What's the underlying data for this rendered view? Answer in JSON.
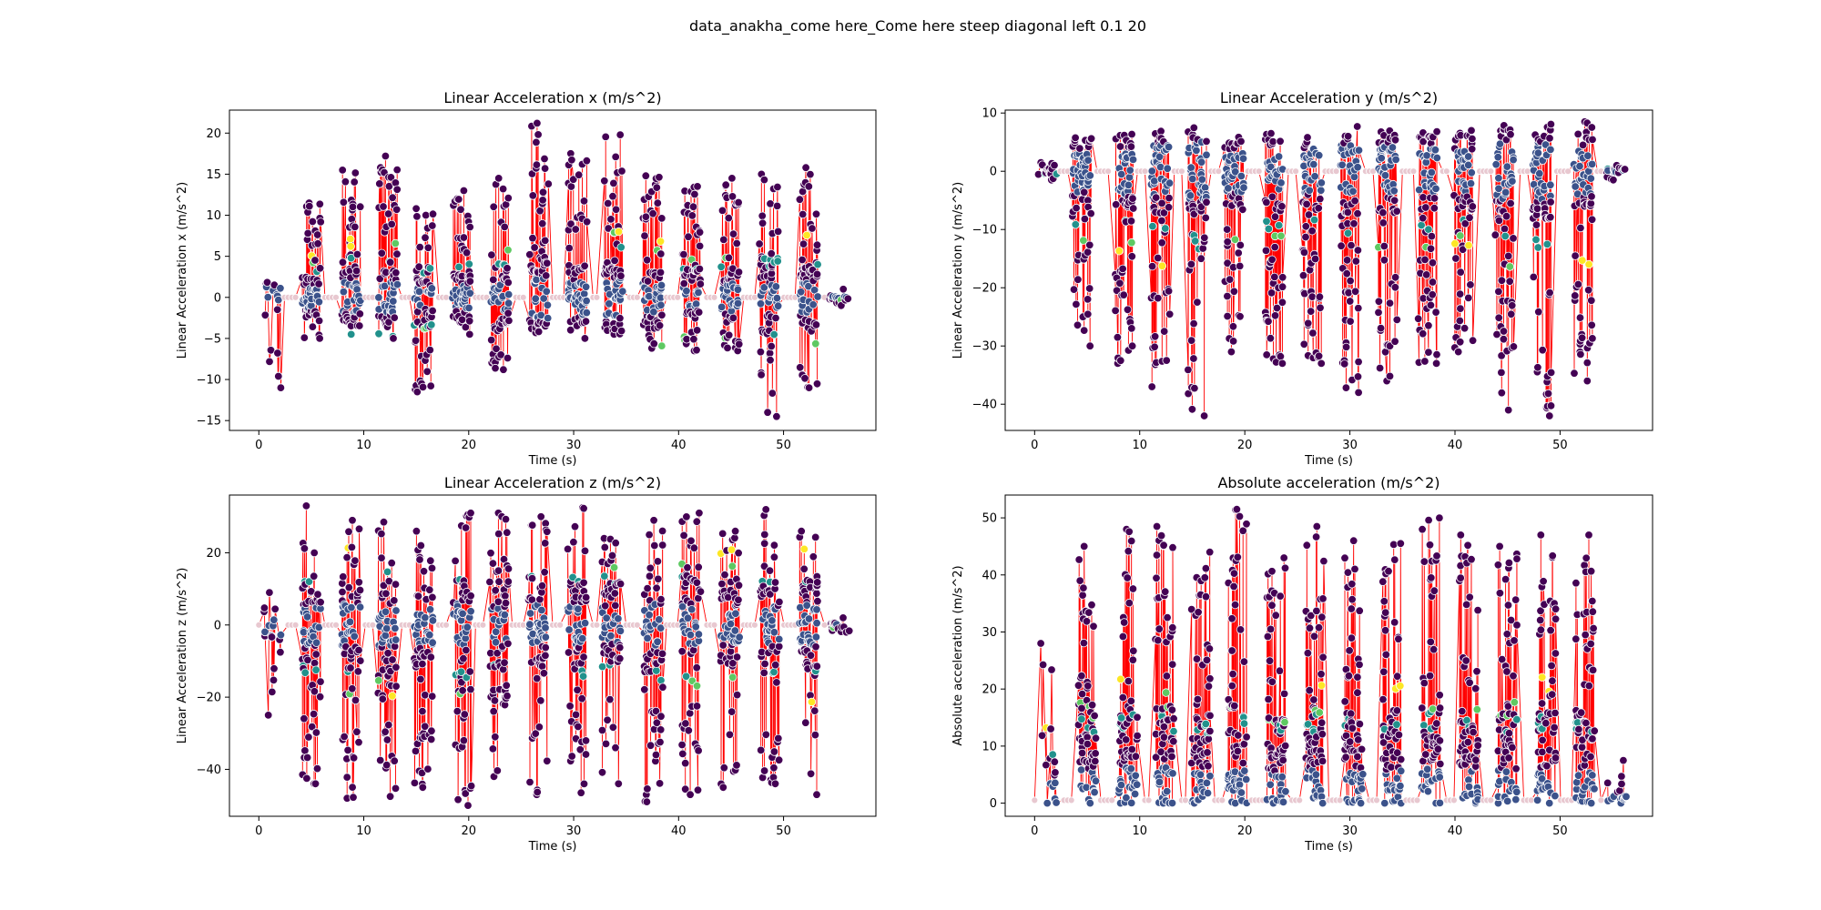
{
  "figure": {
    "suptitle": "data_anakha_come here_Come here steep diagonal left 0.1 20"
  },
  "colors": {
    "line": "#ff0000",
    "marker_edge": "#ffffff",
    "low": "#440154",
    "mid_low": "#3b528b",
    "mid": "#21918c",
    "mid_high": "#5ec962",
    "high": "#fde725",
    "faint": "#e8c8d0"
  },
  "chart_data": [
    {
      "type": "scatter",
      "title": "Linear Acceleration x (m/s^2)",
      "xlabel": "Time (s)",
      "ylabel": "Linear Acceleration x (m/s^2)",
      "xlim": [
        -2.8,
        58.8
      ],
      "ylim": [
        -16.2,
        22.8
      ],
      "xticks": [
        0,
        10,
        20,
        30,
        40,
        50
      ],
      "yticks": [
        -15,
        -10,
        -5,
        0,
        5,
        10,
        15,
        20
      ],
      "grid": false,
      "legend": "none",
      "time_range": [
        0,
        56
      ],
      "idle_value": 0,
      "gesture_centers": [
        1.2,
        5.0,
        8.8,
        12.3,
        15.7,
        19.3,
        23.0,
        26.7,
        30.4,
        33.8,
        37.5,
        41.2,
        44.9,
        48.6,
        52.4,
        55.3
      ],
      "gesture_extents": [
        [
          -11.0,
          1.5
        ],
        [
          -5.0,
          11.5
        ],
        [
          -4.5,
          15.5
        ],
        [
          -5.0,
          17.2
        ],
        [
          -11.5,
          10.8
        ],
        [
          -4.5,
          13.0
        ],
        [
          -8.8,
          14.5
        ],
        [
          -3.5,
          21.2
        ],
        [
          -5.0,
          17.5
        ],
        [
          -4.5,
          19.8
        ],
        [
          -6.2,
          14.8
        ],
        [
          -6.5,
          13.5
        ],
        [
          -6.5,
          14.5
        ],
        [
          -14.5,
          15.0
        ],
        [
          -11.0,
          15.8
        ],
        [
          -1.0,
          1.0
        ]
      ]
    },
    {
      "type": "scatter",
      "title": "Linear Acceleration y (m/s^2)",
      "xlabel": "Time (s)",
      "ylabel": "Linear Acceleration y (m/s^2)",
      "xlim": [
        -2.8,
        58.8
      ],
      "ylim": [
        -44.5,
        10.5
      ],
      "xticks": [
        0,
        10,
        20,
        30,
        40,
        50
      ],
      "yticks": [
        -40,
        -30,
        -20,
        -10,
        0,
        10
      ],
      "grid": false,
      "legend": "none",
      "time_range": [
        0,
        56
      ],
      "idle_value": 0,
      "gesture_centers": [
        1.2,
        4.5,
        8.5,
        12.0,
        15.5,
        19.0,
        22.8,
        26.4,
        30.0,
        33.6,
        37.4,
        40.8,
        44.7,
        48.3,
        52.2,
        55.3
      ],
      "gesture_extents": [
        [
          -1.5,
          1.5
        ],
        [
          -30.0,
          3.0
        ],
        [
          -33.0,
          4.0
        ],
        [
          -37.0,
          4.5
        ],
        [
          -42.0,
          4.0
        ],
        [
          -31.0,
          4.0
        ],
        [
          -33.0,
          6.5
        ],
        [
          -33.0,
          5.0
        ],
        [
          -38.0,
          6.0
        ],
        [
          -36.0,
          5.0
        ],
        [
          -33.0,
          6.0
        ],
        [
          -31.0,
          7.0
        ],
        [
          -41.0,
          6.0
        ],
        [
          -42.0,
          5.0
        ],
        [
          -36.0,
          8.5
        ],
        [
          -1.5,
          1.0
        ]
      ]
    },
    {
      "type": "scatter",
      "title": "Linear Acceleration z (m/s^2)",
      "xlabel": "Time (s)",
      "ylabel": "Linear Acceleration z (m/s^2)",
      "xlim": [
        -2.8,
        58.8
      ],
      "ylim": [
        -53.0,
        36.0
      ],
      "xticks": [
        0,
        10,
        20,
        30,
        40,
        50
      ],
      "yticks": [
        -40,
        -20,
        0,
        20
      ],
      "grid": false,
      "legend": "none",
      "time_range": [
        0,
        56
      ],
      "idle_value": 0,
      "gesture_centers": [
        1.3,
        5.0,
        8.8,
        12.2,
        15.7,
        19.4,
        22.9,
        26.6,
        30.3,
        33.6,
        37.6,
        41.2,
        44.9,
        48.7,
        52.4,
        55.4
      ],
      "gesture_extents": [
        [
          -25.0,
          9.0
        ],
        [
          -44.0,
          33.0
        ],
        [
          -48.0,
          29.0
        ],
        [
          -47.5,
          28.5
        ],
        [
          -45.0,
          26.0
        ],
        [
          -50.0,
          31.0
        ],
        [
          -42.0,
          31.0
        ],
        [
          -47.0,
          30.0
        ],
        [
          -46.5,
          32.5
        ],
        [
          -44.0,
          24.0
        ],
        [
          -49.0,
          29.0
        ],
        [
          -47.0,
          31.0
        ],
        [
          -45.0,
          26.0
        ],
        [
          -44.0,
          32.0
        ],
        [
          -47.0,
          26.0
        ],
        [
          -2.0,
          2.0
        ]
      ]
    },
    {
      "type": "scatter",
      "title": "Absolute acceleration (m/s^2)",
      "xlabel": "Time (s)",
      "ylabel": "Absolute acceleration (m/s^2)",
      "xlim": [
        -2.8,
        58.8
      ],
      "ylim": [
        -2.3,
        54.0
      ],
      "xticks": [
        0,
        10,
        20,
        30,
        40,
        50
      ],
      "yticks": [
        0,
        10,
        20,
        30,
        40,
        50
      ],
      "grid": false,
      "legend": "none",
      "time_range": [
        0,
        56
      ],
      "idle_value": 0.5,
      "gesture_centers": [
        1.3,
        5.0,
        8.9,
        12.4,
        15.8,
        19.3,
        23.0,
        26.7,
        30.4,
        34.0,
        37.7,
        41.3,
        45.0,
        48.7,
        52.4,
        55.4
      ],
      "gesture_extents": [
        [
          0,
          28.0
        ],
        [
          0,
          45.0
        ],
        [
          0,
          48.0
        ],
        [
          0,
          48.5
        ],
        [
          0,
          44.0
        ],
        [
          0,
          51.5
        ],
        [
          0,
          43.0
        ],
        [
          0,
          48.5
        ],
        [
          0,
          46.0
        ],
        [
          0,
          45.5
        ],
        [
          0,
          50.0
        ],
        [
          0,
          47.0
        ],
        [
          0,
          45.0
        ],
        [
          0,
          47.0
        ],
        [
          0,
          47.0
        ],
        [
          0,
          7.5
        ]
      ]
    }
  ]
}
